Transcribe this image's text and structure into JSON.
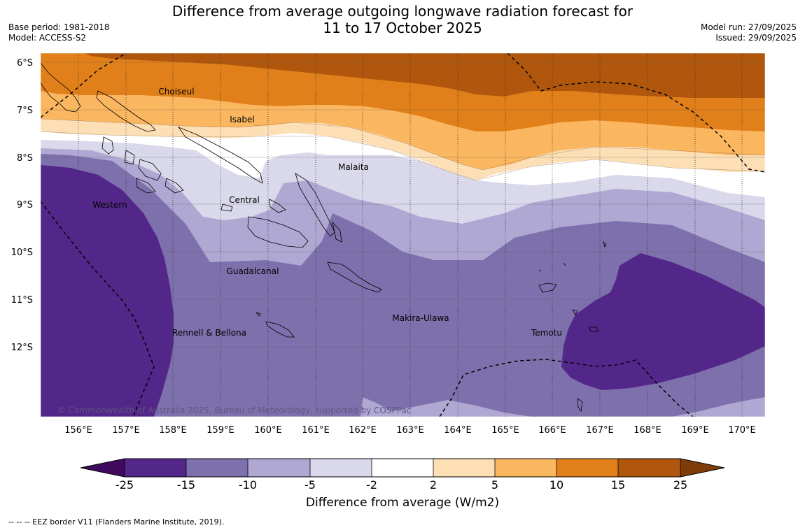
{
  "header": {
    "title_line1": "Difference from average outgoing longwave radiation forecast for",
    "title_line2": "11 to 17 October 2025",
    "base_period": "Base period: 1981-2018",
    "model": "Model: ACCESS-S2",
    "model_run": "Model run: 27/09/2025",
    "issued": "Issued: 29/09/2025"
  },
  "map": {
    "lat_labels": [
      "6°S",
      "7°S",
      "8°S",
      "9°S",
      "10°S",
      "11°S",
      "12°S"
    ],
    "lon_labels": [
      "156°E",
      "157°E",
      "158°E",
      "159°E",
      "160°E",
      "161°E",
      "162°E",
      "163°E",
      "164°E",
      "165°E",
      "166°E",
      "167°E",
      "168°E",
      "169°E",
      "170°E"
    ],
    "region_labels": {
      "choiseul": "Choiseul",
      "isabel": "Isabel",
      "malaita": "Malaita",
      "central": "Central",
      "western": "Western",
      "guadalcanal": "Guadalcanal",
      "rennell": "Rennell & Bellona",
      "makira": "Makira-Ulawa",
      "temotu": "Temotu"
    },
    "copyright": "© Commonwealth of Australia 2025, Bureau of Meteorology, supported by COSPPac"
  },
  "colorbar": {
    "ticks": [
      "-25",
      "-15",
      "-10",
      "-5",
      "-2",
      "2",
      "5",
      "10",
      "15",
      "25"
    ],
    "colors": [
      "#3f0a5e",
      "#53268a",
      "#7e70ac",
      "#aea8d2",
      "#d9d9eb",
      "#ffffff",
      "#fddfb5",
      "#fbb660",
      "#e1801a",
      "#b0570d",
      "#7f3b08"
    ],
    "label": "Difference from average (W/m2)"
  },
  "footnote": "--  --  -- EEZ border V11 (Flanders Marine Institute, 2019)."
}
